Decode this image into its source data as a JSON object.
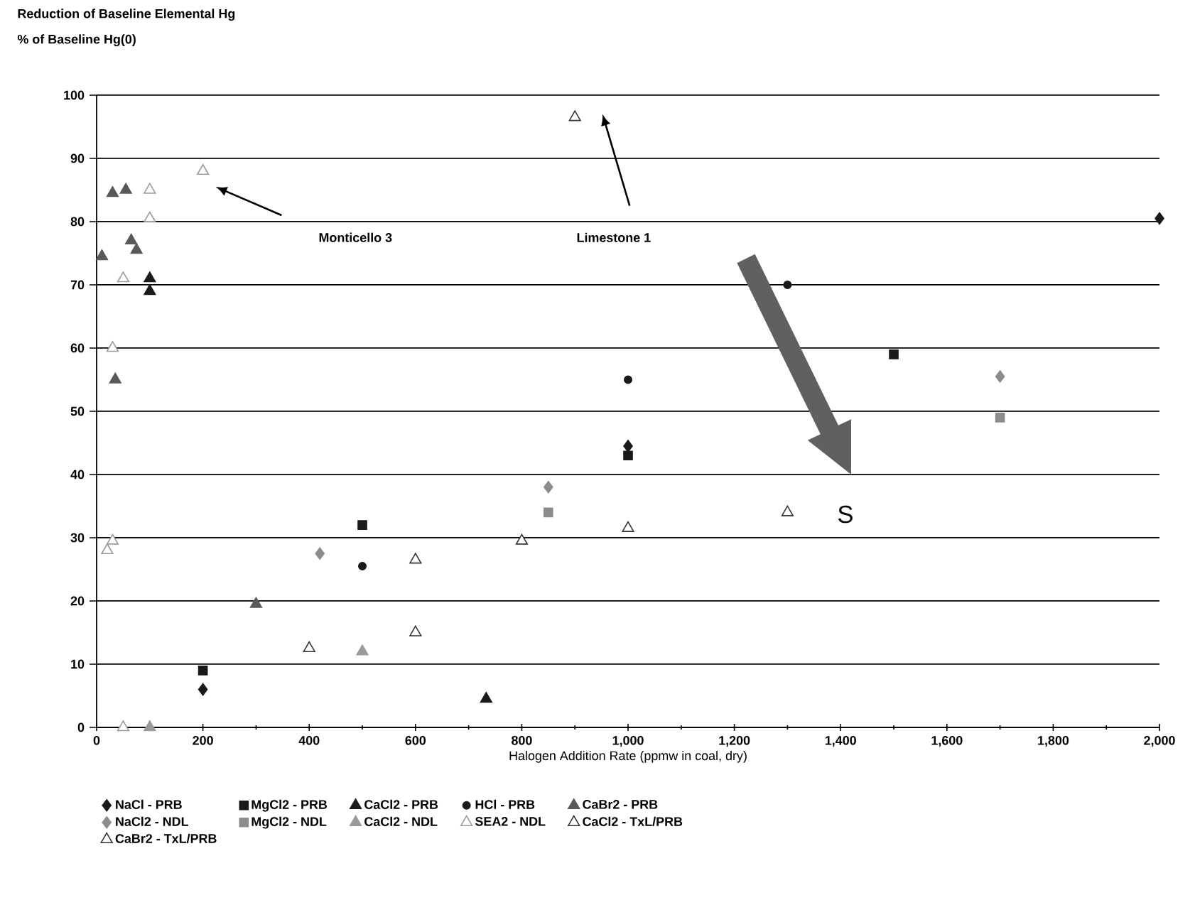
{
  "chart_data": {
    "type": "scatter",
    "title": "Reduction of Baseline Elemental Hg",
    "xlabel": "Halogen Addition Rate (ppmw in coal, dry)",
    "xlim": [
      0,
      2000
    ],
    "xticks": [
      0,
      200,
      400,
      600,
      800,
      {
        "value": 1000,
        "label": "1,000"
      },
      {
        "value": 1200,
        "label": "1,200"
      },
      {
        "value": 1400,
        "label": "1,400"
      },
      {
        "value": 1600,
        "label": "1,600"
      },
      {
        "value": 1800,
        "label": "1,800"
      },
      {
        "value": 2000,
        "label": "2,000"
      }
    ],
    "ylim": [
      0,
      100
    ],
    "yticks": [
      0,
      10,
      20,
      30,
      40,
      50,
      60,
      70,
      80,
      90,
      100
    ],
    "grid": "y",
    "legend": "bottom",
    "annotations": [
      "% of Baseline Hg(0)",
      "Monticello 3",
      "Limestone 1",
      "S"
    ],
    "series": [
      {
        "name": "NaCl - PRB",
        "color": "#1a1a1a",
        "marker": "diamond",
        "x": [
          200,
          2000,
          1000
        ],
        "values": [
          6,
          80.5,
          44.5
        ]
      },
      {
        "name": "MgCl2 - PRB",
        "color": "#1a1a1a",
        "marker": "square",
        "x": [
          200,
          500,
          1500,
          1000
        ],
        "values": [
          9,
          32,
          59,
          43
        ]
      },
      {
        "name": "CaCl2 - PRB",
        "color": "#1a1a1a",
        "marker": "triangle",
        "x": [
          100,
          100,
          733
        ],
        "values": [
          71,
          69,
          4.5
        ]
      },
      {
        "name": "HCl - PRB",
        "color": "#1a1a1a",
        "marker": "circle",
        "x": [
          500,
          1000,
          1300
        ],
        "values": [
          25.5,
          55,
          70
        ]
      },
      {
        "name": "CaBr2 - PRB",
        "color": "#595959",
        "marker": "triangle",
        "x": [
          10,
          30,
          55,
          65,
          75,
          35,
          300
        ],
        "values": [
          74.5,
          84.5,
          85,
          77,
          75.5,
          55,
          19.5
        ]
      },
      {
        "name": "NaCl2 - NDL",
        "color": "#8c8c8c",
        "marker": "diamond",
        "x": [
          420,
          850,
          1700
        ],
        "values": [
          27.5,
          38,
          55.5
        ]
      },
      {
        "name": "MgCl2 - NDL",
        "color": "#8c8c8c",
        "marker": "square",
        "x": [
          850,
          1700
        ],
        "values": [
          34,
          49
        ]
      },
      {
        "name": "CaCl2 - NDL",
        "color": "#9a9a9a",
        "marker": "triangle",
        "x": [
          100,
          500
        ],
        "values": [
          0,
          12
        ]
      },
      {
        "name": "SEA2 - NDL",
        "color": "#9a9a9a",
        "marker": "triangle-open",
        "x": [
          50,
          30,
          20,
          30,
          100,
          100,
          50,
          200
        ],
        "values": [
          0,
          60,
          28,
          29.5,
          85,
          80.5,
          71,
          88
        ]
      },
      {
        "name": "CaCl2 - TxL/PRB",
        "color": "#333333",
        "marker": "triangle-open",
        "x": [
          400,
          600,
          800,
          1000,
          1300
        ],
        "values": [
          12.5,
          15,
          29.5,
          31.5,
          34
        ]
      },
      {
        "name": "CaBr2 - TxL/PRB",
        "color": "#333333",
        "marker": "triangle-open",
        "x": [
          600,
          900
        ],
        "values": [
          26.5,
          96.5
        ]
      }
    ]
  }
}
